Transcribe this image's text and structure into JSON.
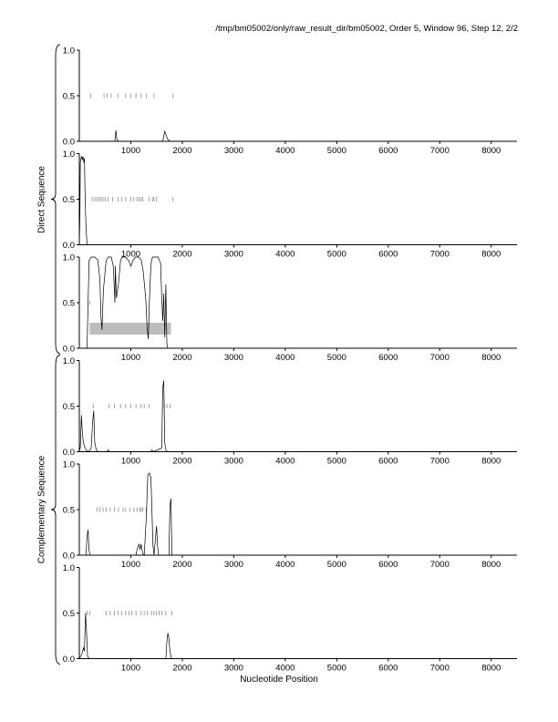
{
  "header": {
    "title": "/tmp/bm05002/only/raw_result_dir/bm05002, Order 5, Window 96, Step 12, 2/2"
  },
  "labels": {
    "direct": "Direct Sequence",
    "complementary": "Complementary Sequence",
    "xaxis": "Nucleotide Position"
  },
  "colors": {
    "line": "#000000",
    "tick": "#888888",
    "band": "#bdbdbd"
  },
  "chart_data": {
    "type": "line",
    "x_range": [
      0,
      8500
    ],
    "y_range": [
      0,
      1
    ],
    "x_ticks": [
      1000,
      2000,
      3000,
      4000,
      5000,
      6000,
      7000,
      8000
    ],
    "y_tick_labels": [
      "0.0",
      "0.5",
      "1.0"
    ],
    "groups": [
      {
        "label": "Direct Sequence",
        "panels": [
          0,
          1,
          2
        ]
      },
      {
        "label": "Complementary Sequence",
        "panels": [
          3,
          4,
          5
        ]
      }
    ],
    "panels": [
      {
        "marks": [
          220,
          480,
          540,
          620,
          750,
          900,
          1000,
          1100,
          1200,
          1300,
          1450,
          1820
        ],
        "series": [
          [
            0,
            0
          ],
          [
            690,
            0
          ],
          [
            710,
            0.12
          ],
          [
            730,
            0.02
          ],
          [
            760,
            0
          ],
          [
            1620,
            0
          ],
          [
            1660,
            0.11
          ],
          [
            1690,
            0.06
          ],
          [
            1720,
            0.02
          ],
          [
            1760,
            0
          ],
          [
            8500,
            0
          ]
        ]
      },
      {
        "marks": [
          250,
          300,
          340,
          380,
          420,
          460,
          500,
          560,
          650,
          750,
          820,
          900,
          1000,
          1060,
          1120,
          1160,
          1200,
          1230,
          1350,
          1420,
          1450,
          1500,
          1820
        ],
        "series": [
          [
            0,
            0
          ],
          [
            10,
            0.3
          ],
          [
            20,
            0.9
          ],
          [
            40,
            0.97
          ],
          [
            60,
            0.93
          ],
          [
            70,
            0.97
          ],
          [
            90,
            0.9
          ],
          [
            100,
            0.95
          ],
          [
            110,
            0.6
          ],
          [
            130,
            0.2
          ],
          [
            150,
            0
          ],
          [
            8500,
            0
          ]
        ]
      },
      {
        "marks": [
          200
        ],
        "band": {
          "x0": 200,
          "x1": 1780,
          "y0": 0.15,
          "y1": 0.28
        },
        "series": [
          [
            0,
            0
          ],
          [
            150,
            0
          ],
          [
            170,
            0.5
          ],
          [
            190,
            0.96
          ],
          [
            230,
            1
          ],
          [
            300,
            1
          ],
          [
            360,
            0.97
          ],
          [
            400,
            0.75
          ],
          [
            420,
            0.35
          ],
          [
            440,
            0.2
          ],
          [
            470,
            0.65
          ],
          [
            520,
            0.96
          ],
          [
            560,
            1
          ],
          [
            620,
            1
          ],
          [
            660,
            0.9
          ],
          [
            690,
            0.5
          ],
          [
            700,
            0.9
          ],
          [
            720,
            0.55
          ],
          [
            760,
            0.7
          ],
          [
            800,
            0.96
          ],
          [
            830,
            1
          ],
          [
            900,
            1
          ],
          [
            960,
            0.96
          ],
          [
            1000,
            0.9
          ],
          [
            1040,
            0.96
          ],
          [
            1090,
            1
          ],
          [
            1150,
            1
          ],
          [
            1200,
            0.97
          ],
          [
            1240,
            0.85
          ],
          [
            1290,
            0.55
          ],
          [
            1320,
            0.2
          ],
          [
            1340,
            0.1
          ],
          [
            1360,
            0.5
          ],
          [
            1390,
            0.92
          ],
          [
            1420,
            1
          ],
          [
            1480,
            1
          ],
          [
            1530,
            1
          ],
          [
            1580,
            0.93
          ],
          [
            1600,
            0.55
          ],
          [
            1620,
            0.3
          ],
          [
            1640,
            0.6
          ],
          [
            1660,
            0.12
          ],
          [
            1680,
            0.7
          ],
          [
            1700,
            0.05
          ],
          [
            1720,
            0
          ],
          [
            8500,
            0
          ]
        ]
      },
      {
        "marks": [
          270,
          580,
          680,
          800,
          900,
          1000,
          1100,
          1200,
          1260,
          1350,
          1650,
          1700,
          1760
        ],
        "series": [
          [
            0,
            0
          ],
          [
            20,
            0.05
          ],
          [
            40,
            0.4
          ],
          [
            60,
            0.2
          ],
          [
            80,
            0.1
          ],
          [
            100,
            0.06
          ],
          [
            130,
            0.02
          ],
          [
            180,
            0
          ],
          [
            230,
            0.04
          ],
          [
            260,
            0.34
          ],
          [
            280,
            0.45
          ],
          [
            300,
            0.1
          ],
          [
            330,
            0.02
          ],
          [
            370,
            0
          ],
          [
            540,
            0
          ],
          [
            560,
            0.02
          ],
          [
            590,
            0
          ],
          [
            1390,
            0
          ],
          [
            1410,
            0.02
          ],
          [
            1440,
            0
          ],
          [
            1600,
            0.04
          ],
          [
            1620,
            0.7
          ],
          [
            1640,
            0.78
          ],
          [
            1660,
            0.1
          ],
          [
            1680,
            0.02
          ],
          [
            1710,
            0
          ],
          [
            8500,
            0
          ]
        ]
      },
      {
        "marks": [
          340,
          400,
          460,
          520,
          600,
          680,
          760,
          850,
          900,
          980,
          1060,
          1120,
          1170,
          1200,
          1230,
          1300
        ],
        "series": [
          [
            0,
            0
          ],
          [
            130,
            0
          ],
          [
            150,
            0.2
          ],
          [
            170,
            0.28
          ],
          [
            190,
            0.05
          ],
          [
            210,
            0
          ],
          [
            1100,
            0
          ],
          [
            1130,
            0.08
          ],
          [
            1160,
            0.12
          ],
          [
            1180,
            0.06
          ],
          [
            1200,
            0.12
          ],
          [
            1230,
            0.02
          ],
          [
            1260,
            0
          ],
          [
            1300,
            0.4
          ],
          [
            1330,
            0.88
          ],
          [
            1360,
            0.9
          ],
          [
            1390,
            0.85
          ],
          [
            1410,
            0.5
          ],
          [
            1430,
            0.1
          ],
          [
            1450,
            0
          ],
          [
            1500,
            0.32
          ],
          [
            1520,
            0.1
          ],
          [
            1540,
            0
          ],
          [
            1740,
            0
          ],
          [
            1760,
            0.55
          ],
          [
            1780,
            0.62
          ],
          [
            1800,
            0
          ],
          [
            8500,
            0
          ]
        ]
      },
      {
        "marks": [
          150,
          200,
          520,
          600,
          680,
          750,
          820,
          900,
          960,
          1020,
          1100,
          1200,
          1260,
          1320,
          1400,
          1450,
          1500,
          1550,
          1600,
          1680,
          1800
        ],
        "series": [
          [
            0,
            0
          ],
          [
            50,
            0.05
          ],
          [
            80,
            0.12
          ],
          [
            100,
            0.08
          ],
          [
            120,
            0.5
          ],
          [
            140,
            0.3
          ],
          [
            160,
            0.03
          ],
          [
            190,
            0
          ],
          [
            1680,
            0
          ],
          [
            1700,
            0.18
          ],
          [
            1720,
            0.28
          ],
          [
            1740,
            0.22
          ],
          [
            1760,
            0.08
          ],
          [
            1790,
            0
          ],
          [
            8500,
            0
          ]
        ]
      }
    ]
  }
}
